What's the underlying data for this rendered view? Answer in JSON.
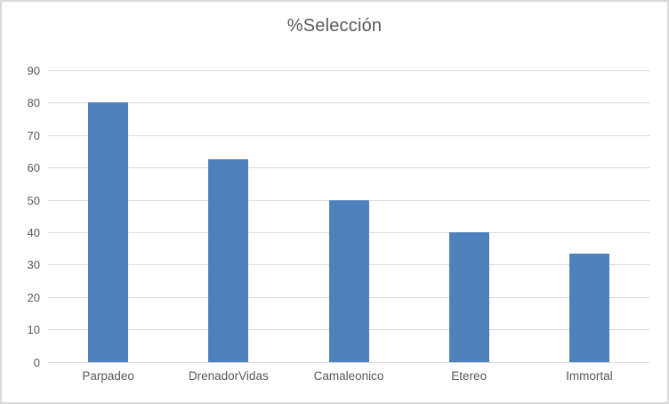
{
  "chart_data": {
    "type": "bar",
    "title": "%Selección",
    "categories": [
      "Parpadeo",
      "DrenadorVidas",
      "Camaleonico",
      "Etereo",
      "Immortal"
    ],
    "values": [
      80,
      62.5,
      50,
      40,
      33.33
    ],
    "xlabel": "",
    "ylabel": "",
    "ylim": [
      0,
      90
    ],
    "yticks": [
      0,
      10,
      20,
      30,
      40,
      50,
      60,
      70,
      80,
      90
    ],
    "grid": "horizontal",
    "legend": "none",
    "colors": {
      "bar": "#4f81bd",
      "gridline": "#d9d9d9",
      "text": "#595959",
      "frame_border": "#d9d9d9",
      "background": "#ffffff"
    }
  }
}
